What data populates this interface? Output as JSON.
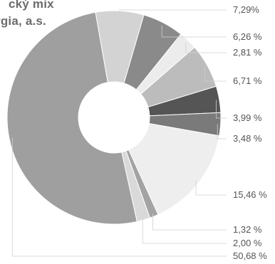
{
  "chart_data": {
    "type": "pie",
    "title_lines": [
      "cký mix",
      "rgia, a.s."
    ],
    "slices": [
      {
        "label": "7,29%",
        "value": 7.29,
        "color": "#d3d3d3"
      },
      {
        "label": "6,26 %",
        "value": 6.26,
        "color": "#8a8a8a"
      },
      {
        "label": "2,81 %",
        "value": 2.81,
        "color": "#ececec"
      },
      {
        "label": "6,71 %",
        "value": 6.71,
        "color": "#bcbcbc"
      },
      {
        "label": "3,99 %",
        "value": 3.99,
        "color": "#555555"
      },
      {
        "label": "3,48 %",
        "value": 3.48,
        "color": "#7a7a7a"
      },
      {
        "label": "15,46 %",
        "value": 15.46,
        "color": "#eeeeee"
      },
      {
        "label": "1,32 %",
        "value": 1.32,
        "color": "#a3a3a3"
      },
      {
        "label": "2,00 %",
        "value": 2.0,
        "color": "#d9d9d9"
      },
      {
        "label": "50,68 %",
        "value": 50.68,
        "color": "#9f9f9f"
      }
    ]
  }
}
